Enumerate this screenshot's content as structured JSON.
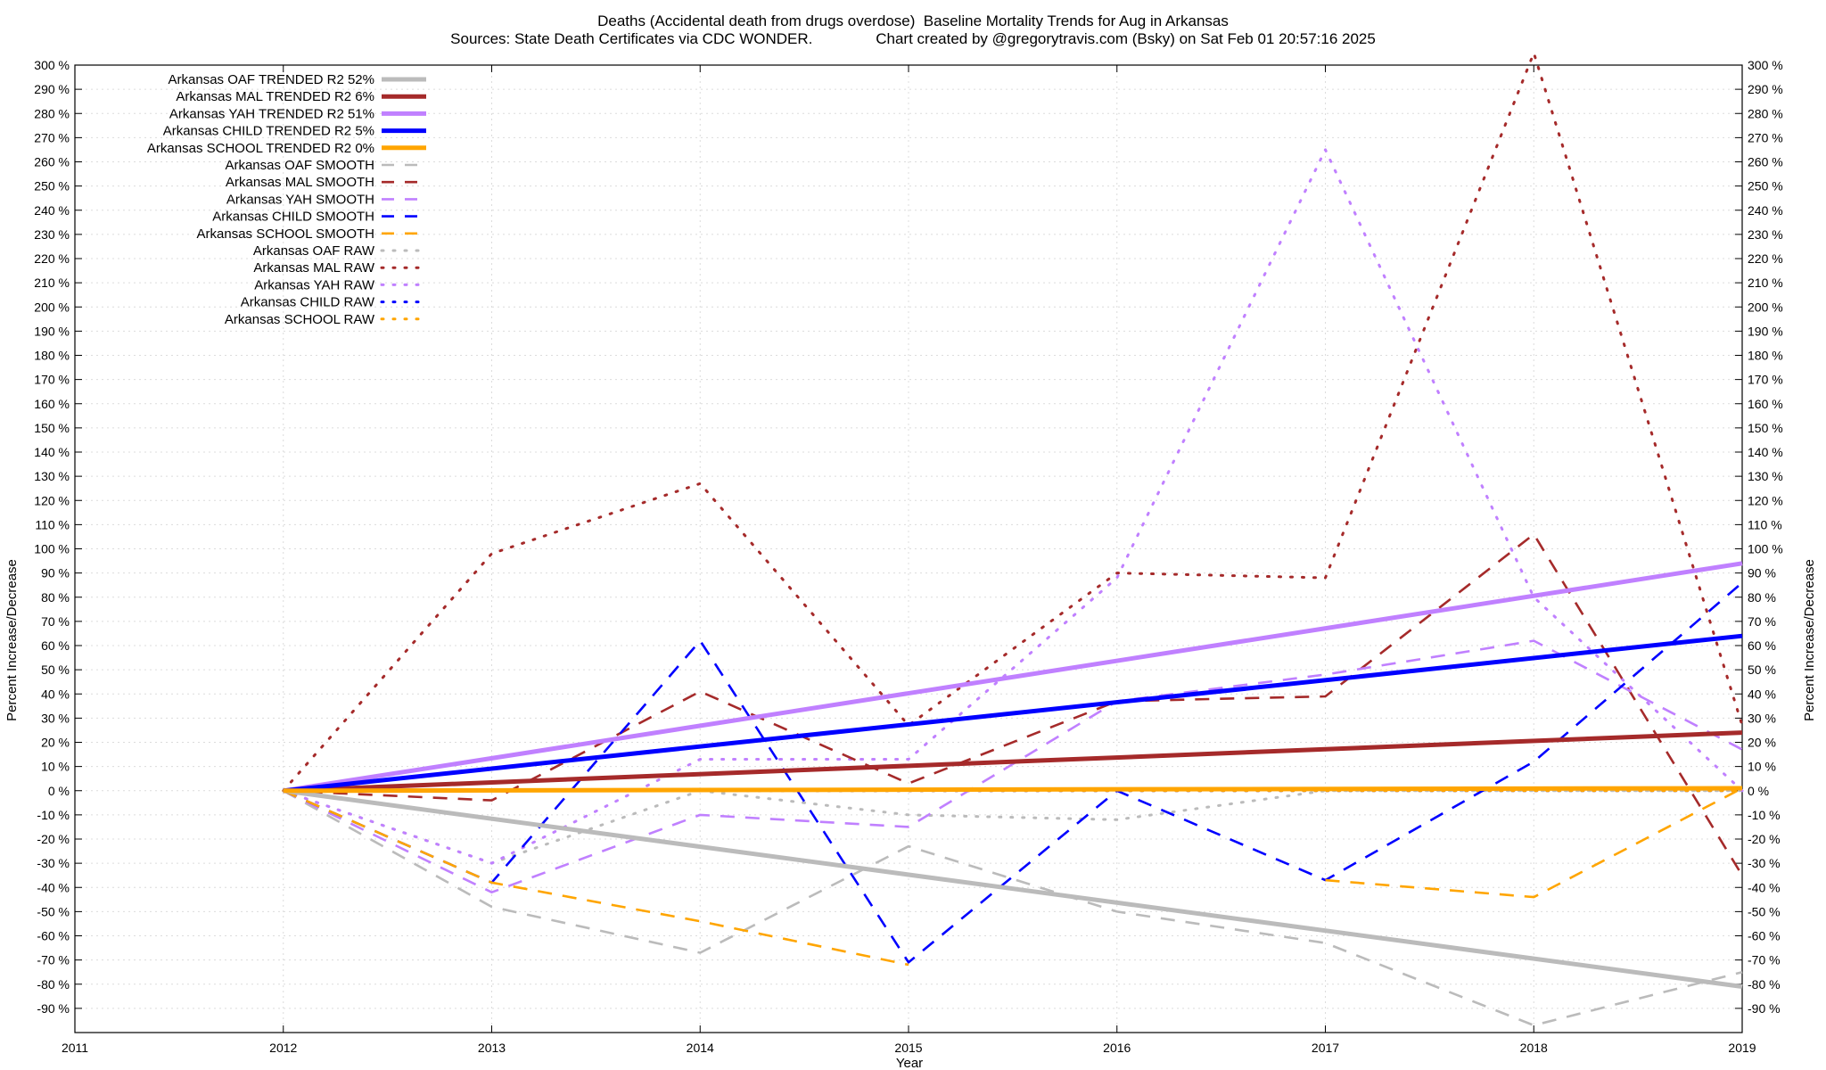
{
  "chart_data": {
    "type": "line",
    "title": "Deaths (Accidental death from drugs overdose)  Baseline Mortality Trends for Aug in Arkansas",
    "subtitle": "Sources: State Death Certificates via CDC WONDER.               Chart created by @gregorytravis.com (Bsky) on Sat Feb 01 20:57:16 2025",
    "xlabel": "Year",
    "ylabel": "Percent Increase/Decrease",
    "y2label": "Percent Increase/Decrease",
    "xlim": [
      2011,
      2019
    ],
    "ylim": [
      -100,
      300
    ],
    "x_ticks": [
      "2011",
      "2012",
      "2013",
      "2014",
      "2015",
      "2016",
      "2017",
      "2018",
      "2019"
    ],
    "y_ticks": [
      "300 %",
      "290 %",
      "280 %",
      "270 %",
      "260 %",
      "250 %",
      "240 %",
      "230 %",
      "220 %",
      "210 %",
      "200 %",
      "190 %",
      "180 %",
      "170 %",
      "160 %",
      "150 %",
      "140 %",
      "130 %",
      "120 %",
      "110 %",
      "100 %",
      "90 %",
      "80 %",
      "70 %",
      "60 %",
      "50 %",
      "40 %",
      "30 %",
      "20 %",
      "10 %",
      "0 %",
      "-10 %",
      "-20 %",
      "-30 %",
      "-40 %",
      "-50 %",
      "-60 %",
      "-70 %",
      "-80 %",
      "-90 %"
    ],
    "y_tick_values": [
      300,
      290,
      280,
      270,
      260,
      250,
      240,
      230,
      220,
      210,
      200,
      190,
      180,
      170,
      160,
      150,
      140,
      130,
      120,
      110,
      100,
      90,
      80,
      70,
      60,
      50,
      40,
      30,
      20,
      10,
      0,
      -10,
      -20,
      -30,
      -40,
      -50,
      -60,
      -70,
      -80,
      -90
    ],
    "grid": true,
    "legend_position": "top-left",
    "series": [
      {
        "name": "Arkansas OAF TRENDED R2  52%",
        "style": "solid",
        "color": "#bbbbbb",
        "x": [
          2012,
          2019
        ],
        "values": [
          0,
          -81
        ]
      },
      {
        "name": "Arkansas MAL TRENDED R2   6%",
        "style": "solid",
        "color": "#a52a2a",
        "x": [
          2012,
          2019
        ],
        "values": [
          0,
          24
        ]
      },
      {
        "name": "Arkansas YAH TRENDED R2  51%",
        "style": "solid",
        "color": "#c080ff",
        "x": [
          2012,
          2019
        ],
        "values": [
          0,
          94
        ]
      },
      {
        "name": "Arkansas CHILD TRENDED R2   5%",
        "style": "solid",
        "color": "#0000ff",
        "x": [
          2012,
          2019
        ],
        "values": [
          0,
          64
        ]
      },
      {
        "name": "Arkansas SCHOOL TRENDED R2   0%",
        "style": "solid",
        "color": "#ffa500",
        "x": [
          2012,
          2019
        ],
        "values": [
          0,
          1
        ]
      },
      {
        "name": "Arkansas OAF SMOOTH",
        "style": "dashed",
        "color": "#bbbbbb",
        "x": [
          2012,
          2013,
          2014,
          2015,
          2016,
          2017,
          2018,
          2019
        ],
        "values": [
          0,
          -48,
          -67,
          -23,
          -50,
          -63,
          -97,
          -75
        ]
      },
      {
        "name": "Arkansas MAL SMOOTH",
        "style": "dashed",
        "color": "#a52a2a",
        "x": [
          2012,
          2013,
          2014,
          2015,
          2016,
          2017,
          2018,
          2019
        ],
        "values": [
          0,
          -4,
          41,
          3,
          37,
          39,
          106,
          -35
        ]
      },
      {
        "name": "Arkansas YAH SMOOTH",
        "style": "dashed",
        "color": "#c080ff",
        "x": [
          2012,
          2013,
          2014,
          2015,
          2016,
          2017,
          2018,
          2019
        ],
        "values": [
          0,
          -42,
          -10,
          -15,
          37,
          48,
          62,
          17
        ]
      },
      {
        "name": "Arkansas CHILD SMOOTH",
        "style": "dashed",
        "color": "#0000ff",
        "x": [
          2012,
          2013,
          2014,
          2015,
          2016,
          2017,
          2018,
          2019
        ],
        "values": [
          0,
          -38,
          62,
          -71,
          0,
          -37,
          12,
          86
        ]
      },
      {
        "name": "Arkansas SCHOOL SMOOTH",
        "style": "dashed",
        "color": "#ffa500",
        "x": [
          2012,
          2013,
          2014,
          2015,
          2016,
          2017,
          2018,
          2019
        ],
        "values": [
          0,
          -38,
          -54,
          -72,
          null,
          -37,
          -44,
          1
        ]
      },
      {
        "name": "Arkansas OAF RAW",
        "style": "dotted",
        "color": "#bbbbbb",
        "x": [
          2012,
          2013,
          2014,
          2015,
          2016,
          2017,
          2018,
          2019
        ],
        "values": [
          0,
          -30,
          0,
          -10,
          -12,
          0,
          0,
          0
        ]
      },
      {
        "name": "Arkansas MAL RAW",
        "style": "dotted",
        "color": "#a52a2a",
        "x": [
          2012,
          2013,
          2014,
          2015,
          2016,
          2017,
          2018,
          2019
        ],
        "values": [
          0,
          98,
          127,
          27,
          90,
          88,
          305,
          27
        ]
      },
      {
        "name": "Arkansas YAH RAW",
        "style": "dotted",
        "color": "#c080ff",
        "x": [
          2012,
          2013,
          2014,
          2015,
          2016,
          2017,
          2018,
          2019
        ],
        "values": [
          0,
          -30,
          13,
          13,
          88,
          265,
          80,
          0
        ]
      },
      {
        "name": "Arkansas CHILD RAW",
        "style": "dotted",
        "color": "#0000ff",
        "x": [
          2012,
          2013,
          2014,
          2015,
          2016,
          2017,
          2018,
          2019
        ],
        "values": [
          0,
          0,
          0,
          0,
          0,
          0,
          0,
          0
        ]
      },
      {
        "name": "Arkansas SCHOOL RAW",
        "style": "dotted",
        "color": "#ffa500",
        "x": [
          2012,
          2013,
          2014,
          2015,
          2016,
          2017,
          2018,
          2019
        ],
        "values": [
          0,
          0,
          0,
          0,
          0,
          0,
          0,
          0
        ]
      }
    ]
  }
}
